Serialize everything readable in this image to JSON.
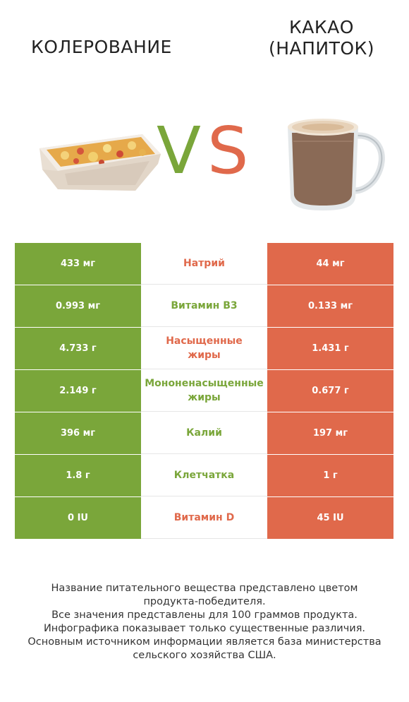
{
  "header": {
    "left_title": "КОЛЕРОВАНИЕ",
    "right_title": "КАКАО\n(НАПИТОК)",
    "vs_v": "V",
    "vs_s": "S"
  },
  "colors": {
    "left": "#7aa63a",
    "right": "#e0694b",
    "vs_v": "#7aa63a",
    "vs_s": "#e0694b"
  },
  "rows": [
    {
      "left": "433 мг",
      "nutrient": "Натрий",
      "right": "44 мг",
      "winner": "right"
    },
    {
      "left": "0.993 мг",
      "nutrient": "Витамин B3",
      "right": "0.133 мг",
      "winner": "left"
    },
    {
      "left": "4.733 г",
      "nutrient": "Насыщенные\nжиры",
      "right": "1.431 г",
      "winner": "right"
    },
    {
      "left": "2.149 г",
      "nutrient": "Мононенасыщенные\nжиры",
      "right": "0.677 г",
      "winner": "left"
    },
    {
      "left": "396 мг",
      "nutrient": "Калий",
      "right": "197 мг",
      "winner": "left"
    },
    {
      "left": "1.8 г",
      "nutrient": "Клетчатка",
      "right": "1 г",
      "winner": "left"
    },
    {
      "left": "0 IU",
      "nutrient": "Витамин D",
      "right": "45 IU",
      "winner": "right"
    }
  ],
  "footer": {
    "line1": "Название питательного вещества представлено цветом",
    "line2": "продукта-победителя.",
    "line3": "Все значения представлены для 100 граммов продукта.",
    "line4": "Инфографика показывает только существенные различия.",
    "line5": "Основным источником информации является база министерства",
    "line6": "сельского хозяйства США."
  }
}
